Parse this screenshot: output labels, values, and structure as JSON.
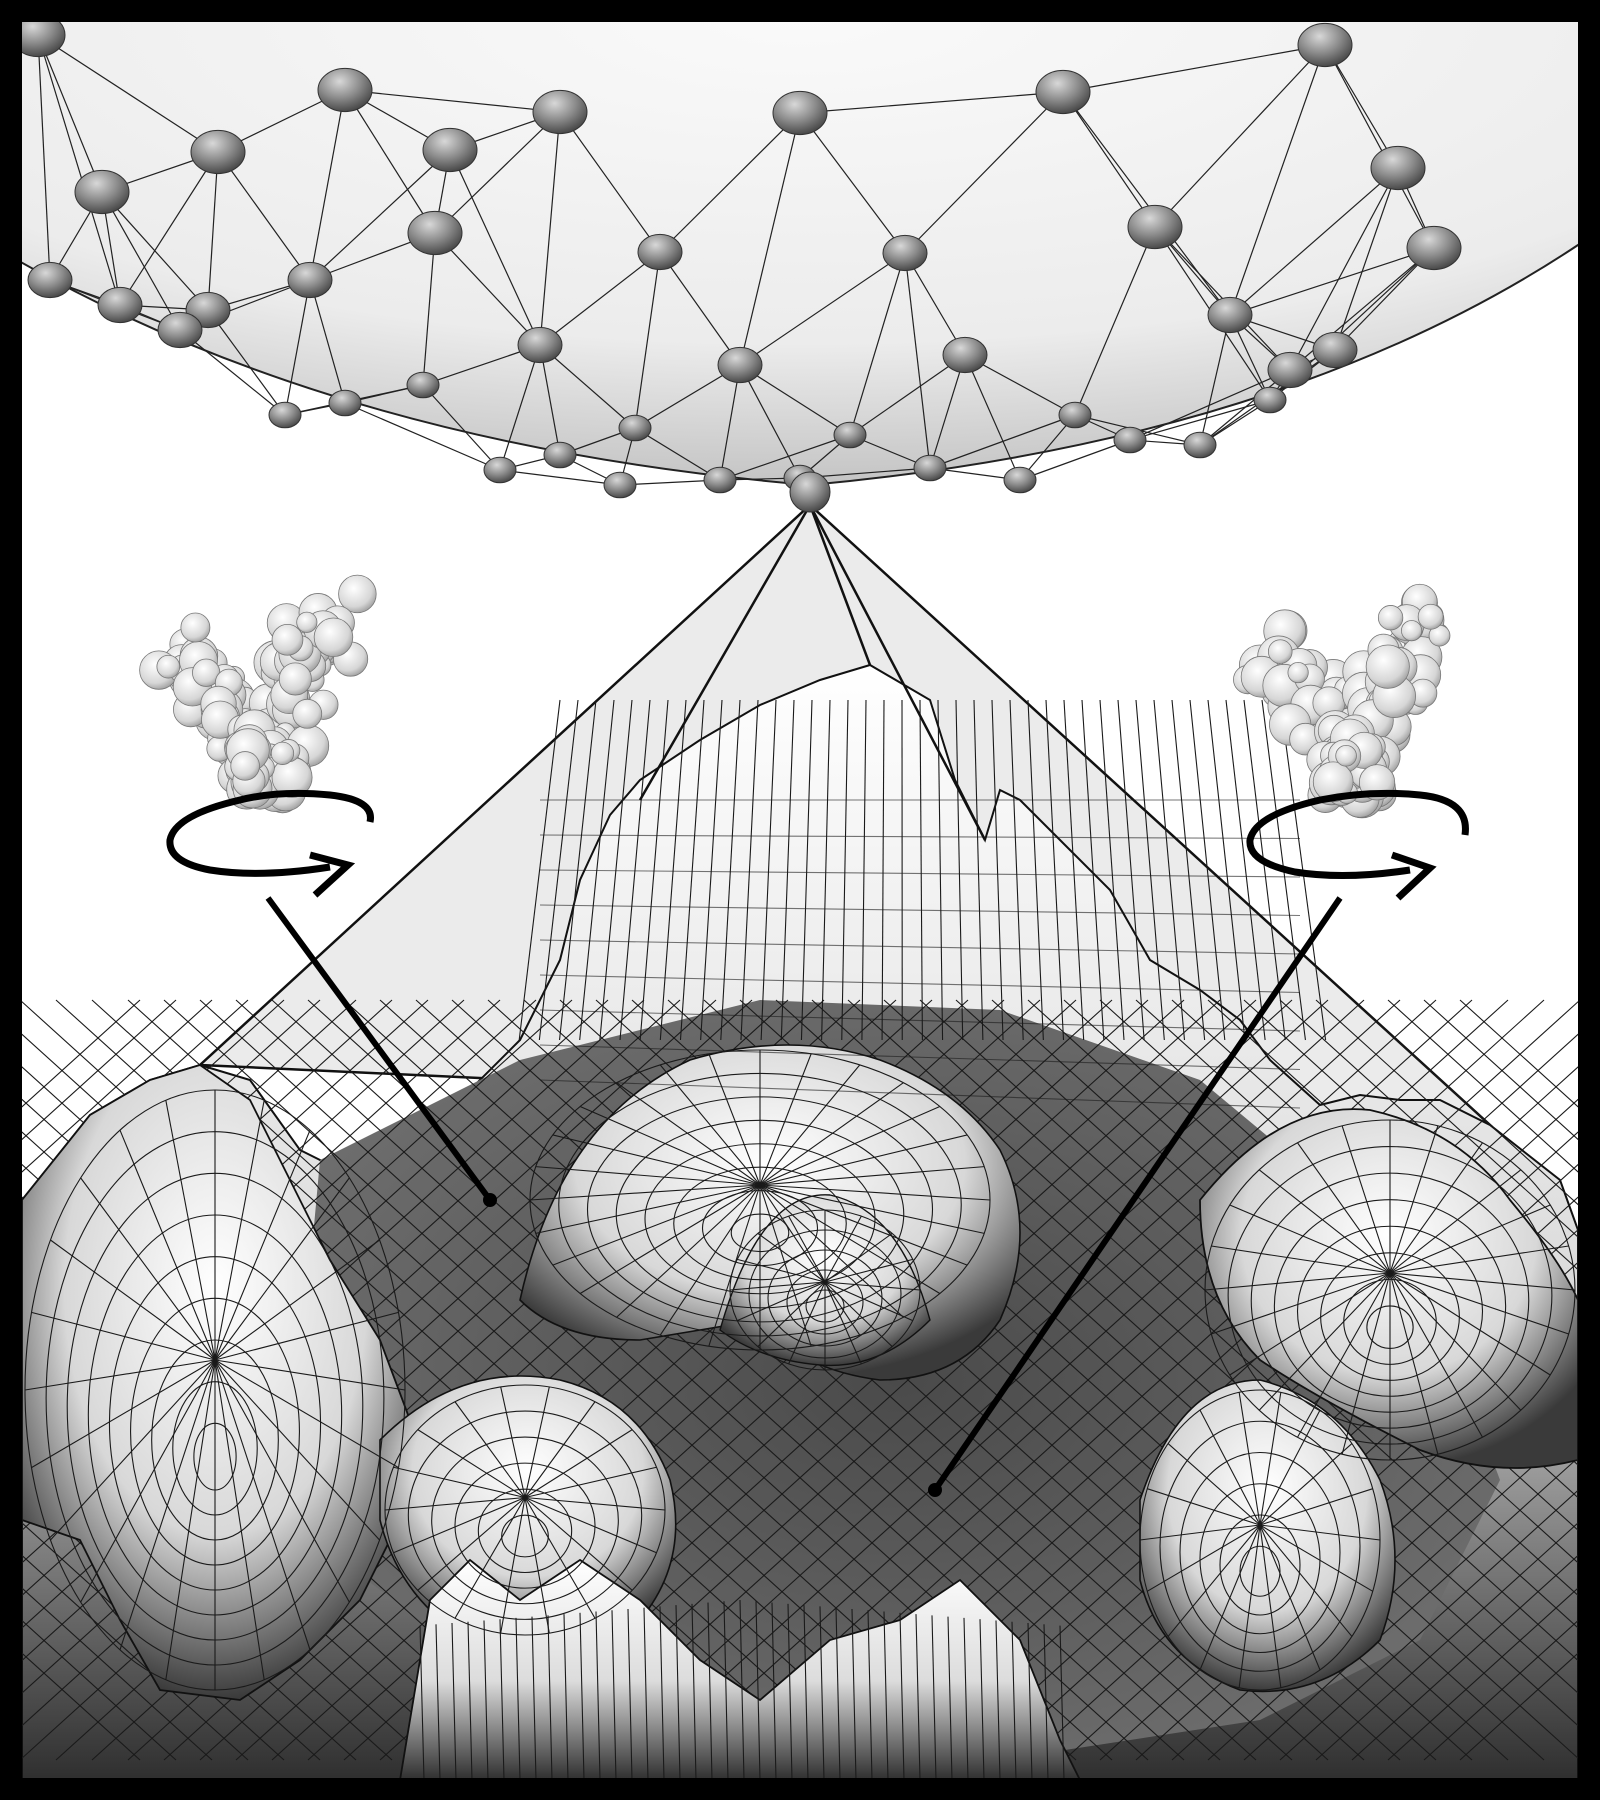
{
  "figure": {
    "description_kind": "illustration",
    "palette": {
      "frame": "#000000",
      "background": "#ffffff",
      "sphere": "#f2f2f2",
      "node": "#8a8a8a",
      "line": "#111111",
      "valley": "#3c3c3c",
      "peak": "#ffffff"
    },
    "panels": {
      "sphere": {
        "node_icon": "hemisphere-node-icon",
        "grid": "triangulated"
      },
      "landscape": {
        "grid": "wireframe-surface"
      },
      "molecules": [
        {
          "id": "left",
          "icon": "protein-structure-icon",
          "rotation_icon": "rotation-arrow-icon"
        },
        {
          "id": "right",
          "icon": "protein-structure-icon",
          "rotation_icon": "rotation-arrow-icon"
        }
      ]
    }
  }
}
